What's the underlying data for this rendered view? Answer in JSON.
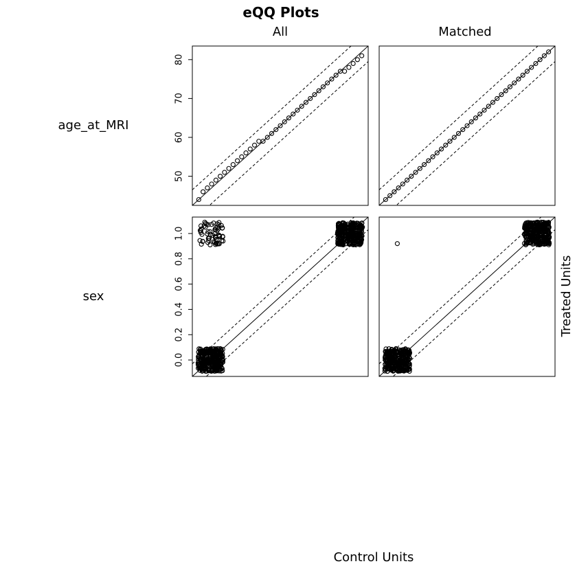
{
  "chart_data": {
    "type": "scatter",
    "title": "eQQ Plots",
    "xlabel": "Control Units",
    "ylabel": "Treated Units",
    "columns": [
      "All",
      "Matched"
    ],
    "rows": [
      {
        "variable": "age_at_MRI",
        "range": [
          42.5,
          83.5
        ],
        "ticks": [
          50,
          60,
          70,
          80
        ],
        "tick_labels": [
          "50",
          "60",
          "70",
          "80"
        ],
        "band": 4.0,
        "panels": [
          {
            "name": "All",
            "x": [
              44,
              45,
              46,
              47,
              48,
              49,
              50,
              51,
              52,
              53,
              54,
              55,
              56,
              57,
              58,
              59,
              60,
              61,
              62,
              63,
              64,
              65,
              66,
              67,
              68,
              69,
              70,
              71,
              72,
              73,
              74,
              75,
              76,
              77,
              78,
              79,
              80,
              81,
              82
            ],
            "y": [
              44,
              46,
              47,
              48,
              49,
              50,
              51,
              52,
              53,
              54,
              55,
              56,
              57,
              58,
              59,
              59,
              60,
              61,
              62,
              63,
              64,
              65,
              66,
              67,
              68,
              69,
              70,
              71,
              72,
              73,
              74,
              75,
              76,
              77,
              77,
              78,
              79,
              80,
              81
            ]
          },
          {
            "name": "Matched",
            "x": [
              44,
              45,
              46,
              47,
              48,
              49,
              50,
              51,
              52,
              53,
              54,
              55,
              56,
              57,
              58,
              59,
              60,
              61,
              62,
              63,
              64,
              65,
              66,
              67,
              68,
              69,
              70,
              71,
              72,
              73,
              74,
              75,
              76,
              77,
              78,
              79,
              80,
              81,
              82
            ],
            "y": [
              44,
              45,
              46,
              47,
              48,
              49,
              50,
              51,
              52,
              53,
              54,
              55,
              56,
              57,
              58,
              59,
              60,
              61,
              62,
              63,
              64,
              65,
              66,
              67,
              68,
              69,
              70,
              71,
              72,
              73,
              74,
              75,
              76,
              77,
              78,
              79,
              80,
              81,
              82
            ]
          }
        ]
      },
      {
        "variable": "sex",
        "range": [
          -0.13,
          1.13
        ],
        "ticks": [
          0.0,
          0.2,
          0.4,
          0.6,
          0.8,
          1.0
        ],
        "tick_labels": [
          "0.0",
          "0.2",
          "0.4",
          "0.6",
          "0.8",
          "1.0"
        ],
        "band": 0.1,
        "panels": [
          {
            "name": "All",
            "clusters": [
              {
                "x": 0.0,
                "y": 0.0,
                "spread": 0.09,
                "n": 320
              },
              {
                "x": 1.0,
                "y": 1.0,
                "spread": 0.09,
                "n": 320
              },
              {
                "x": 0.0,
                "y": 1.0,
                "spread": 0.09,
                "n": 60
              }
            ]
          },
          {
            "name": "Matched",
            "clusters": [
              {
                "x": 0.0,
                "y": 0.0,
                "spread": 0.09,
                "n": 320
              },
              {
                "x": 1.0,
                "y": 1.0,
                "spread": 0.09,
                "n": 320
              }
            ],
            "points": [
              {
                "x": 0.0,
                "y": 0.92
              }
            ]
          }
        ]
      }
    ]
  }
}
